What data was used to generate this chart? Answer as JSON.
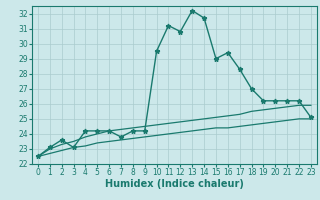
{
  "title": "",
  "xlabel": "Humidex (Indice chaleur)",
  "ylabel": "",
  "background_color": "#cce8ea",
  "grid_color": "#aaccce",
  "line_color": "#1a7a6e",
  "xlim": [
    -0.5,
    23.5
  ],
  "ylim": [
    22,
    32.5
  ],
  "yticks": [
    22,
    23,
    24,
    25,
    26,
    27,
    28,
    29,
    30,
    31,
    32
  ],
  "xticks": [
    0,
    1,
    2,
    3,
    4,
    5,
    6,
    7,
    8,
    9,
    10,
    11,
    12,
    13,
    14,
    15,
    16,
    17,
    18,
    19,
    20,
    21,
    22,
    23
  ],
  "series": [
    {
      "x": [
        0,
        1,
        2,
        3,
        4,
        5,
        6,
        7,
        8,
        9,
        10,
        11,
        12,
        13,
        14,
        15,
        16,
        17,
        18,
        19,
        20,
        21,
        22,
        23
      ],
      "y": [
        22.5,
        23.1,
        23.6,
        23.1,
        24.2,
        24.2,
        24.2,
        23.8,
        24.2,
        24.2,
        29.5,
        31.2,
        30.8,
        32.2,
        31.7,
        29.0,
        29.4,
        28.3,
        27.0,
        26.2,
        26.2,
        26.2,
        26.2,
        25.1
      ],
      "marker": "*",
      "markersize": 3.5,
      "linewidth": 1.0
    },
    {
      "x": [
        0,
        1,
        2,
        3,
        4,
        5,
        6,
        7,
        8,
        9,
        10,
        11,
        12,
        13,
        14,
        15,
        16,
        17,
        18,
        19,
        20,
        21,
        22,
        23
      ],
      "y": [
        22.5,
        23.0,
        23.3,
        23.5,
        23.8,
        24.0,
        24.2,
        24.3,
        24.4,
        24.5,
        24.6,
        24.7,
        24.8,
        24.9,
        25.0,
        25.1,
        25.2,
        25.3,
        25.5,
        25.6,
        25.7,
        25.8,
        25.9,
        25.9
      ],
      "marker": null,
      "markersize": 0,
      "linewidth": 0.9
    },
    {
      "x": [
        0,
        1,
        2,
        3,
        4,
        5,
        6,
        7,
        8,
        9,
        10,
        11,
        12,
        13,
        14,
        15,
        16,
        17,
        18,
        19,
        20,
        21,
        22,
        23
      ],
      "y": [
        22.5,
        22.7,
        22.9,
        23.1,
        23.2,
        23.4,
        23.5,
        23.6,
        23.7,
        23.8,
        23.9,
        24.0,
        24.1,
        24.2,
        24.3,
        24.4,
        24.4,
        24.5,
        24.6,
        24.7,
        24.8,
        24.9,
        25.0,
        25.0
      ],
      "marker": null,
      "markersize": 0,
      "linewidth": 0.9
    }
  ],
  "xlabel_fontsize": 7,
  "tick_fontsize": 5.5
}
